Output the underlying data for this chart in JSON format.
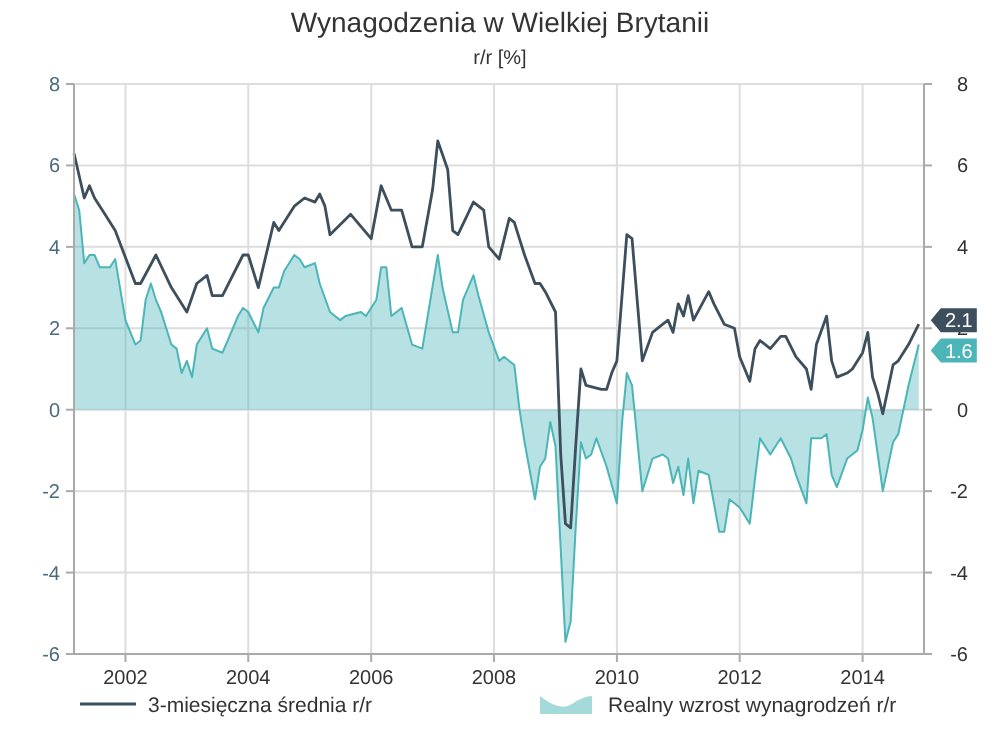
{
  "chart_data": {
    "type": "line",
    "title": "Wynagodzenia w Wielkiej Brytanii",
    "subtitle": "r/r [%]",
    "xlim": [
      "2001-03",
      "2015-01"
    ],
    "xticks": [
      "2002",
      "2004",
      "2006",
      "2008",
      "2010",
      "2012",
      "2014"
    ],
    "ylim": [
      -6,
      8
    ],
    "yticks": [
      -6,
      -4,
      -2,
      0,
      2,
      4,
      6,
      8
    ],
    "y2lim": [
      -6,
      8
    ],
    "y2ticks": [
      -6,
      -4,
      -2,
      0,
      2,
      4,
      6,
      8
    ],
    "grid": true,
    "legend": "bottom",
    "line_style": "solid",
    "marker": "none",
    "annotations": [
      {
        "text": "2.1",
        "x": "2014-12",
        "y": 2.1
      },
      {
        "text": "1.6",
        "x": "2014-12",
        "y": 1.6
      }
    ],
    "series": [
      {
        "name": "3-miesięczna średnia r/r",
        "color": "#3d4f5c",
        "x": [
          "2001-03",
          "2001-05",
          "2001-06",
          "2001-07",
          "2001-09",
          "2001-11",
          "2002-03",
          "2002-04",
          "2002-07",
          "2002-10",
          "2003-01",
          "2003-03",
          "2003-05",
          "2003-06",
          "2003-08",
          "2003-12",
          "2004-01",
          "2004-03",
          "2004-06",
          "2004-07",
          "2004-10",
          "2004-12",
          "2005-02",
          "2005-03",
          "2005-04",
          "2005-05",
          "2005-09",
          "2006-01",
          "2006-03",
          "2006-05",
          "2006-07",
          "2006-09",
          "2006-11",
          "2007-01",
          "2007-02",
          "2007-04",
          "2007-05",
          "2007-06",
          "2007-09",
          "2007-11",
          "2007-12",
          "2008-02",
          "2008-04",
          "2008-05",
          "2008-07",
          "2008-09",
          "2008-10",
          "2008-11",
          "2009-01",
          "2009-02",
          "2009-03",
          "2009-04",
          "2009-05",
          "2009-06",
          "2009-07",
          "2009-10",
          "2009-11",
          "2009-12",
          "2010-01",
          "2010-03",
          "2010-04",
          "2010-06",
          "2010-08",
          "2010-10",
          "2010-11",
          "2010-12",
          "2011-01",
          "2011-02",
          "2011-03",
          "2011-04",
          "2011-07",
          "2011-08",
          "2011-10",
          "2011-12",
          "2012-01",
          "2012-03",
          "2012-04",
          "2012-05",
          "2012-07",
          "2012-09",
          "2012-10",
          "2012-12",
          "2013-02",
          "2013-03",
          "2013-04",
          "2013-06",
          "2013-07",
          "2013-08",
          "2013-10",
          "2013-11",
          "2014-01",
          "2014-02",
          "2014-03",
          "2014-04",
          "2014-05",
          "2014-07",
          "2014-08",
          "2014-10",
          "2014-12"
        ],
        "values": [
          6.3,
          5.2,
          5.5,
          5.2,
          4.8,
          4.4,
          3.1,
          3.1,
          3.8,
          3.0,
          2.4,
          3.1,
          3.3,
          2.8,
          2.8,
          3.8,
          3.8,
          3.0,
          4.6,
          4.4,
          5.0,
          5.2,
          5.1,
          5.3,
          5.0,
          4.3,
          4.8,
          4.2,
          5.5,
          4.9,
          4.9,
          4.0,
          4.0,
          5.4,
          6.6,
          5.9,
          4.4,
          4.3,
          5.1,
          4.9,
          4.0,
          3.7,
          4.7,
          4.6,
          3.8,
          3.1,
          3.1,
          2.9,
          2.4,
          -1.1,
          -2.8,
          -2.9,
          -0.9,
          1.0,
          0.6,
          0.5,
          0.5,
          0.9,
          1.2,
          4.3,
          4.2,
          1.2,
          1.9,
          2.1,
          2.2,
          1.9,
          2.6,
          2.3,
          2.8,
          2.2,
          2.9,
          2.6,
          2.1,
          2.0,
          1.3,
          0.7,
          1.5,
          1.7,
          1.5,
          1.8,
          1.8,
          1.3,
          1.0,
          0.5,
          1.6,
          2.3,
          1.2,
          0.8,
          0.9,
          1.0,
          1.4,
          1.9,
          0.8,
          0.4,
          -0.1,
          1.1,
          1.2,
          1.6,
          2.1
        ]
      },
      {
        "name": "Realny wzrost wynagrodzeń r/r",
        "type": "area",
        "color": "#4bb5b8",
        "x": [
          "2001-03",
          "2001-04",
          "2001-05",
          "2001-06",
          "2001-07",
          "2001-08",
          "2001-10",
          "2001-11",
          "2002-01",
          "2002-03",
          "2002-04",
          "2002-05",
          "2002-06",
          "2002-07",
          "2002-08",
          "2002-10",
          "2002-11",
          "2002-12",
          "2003-01",
          "2003-02",
          "2003-03",
          "2003-05",
          "2003-06",
          "2003-08",
          "2003-09",
          "2003-11",
          "2003-12",
          "2004-01",
          "2004-03",
          "2004-04",
          "2004-06",
          "2004-07",
          "2004-08",
          "2004-10",
          "2004-11",
          "2004-12",
          "2005-02",
          "2005-03",
          "2005-05",
          "2005-07",
          "2005-08",
          "2005-11",
          "2005-12",
          "2006-02",
          "2006-03",
          "2006-04",
          "2006-05",
          "2006-07",
          "2006-09",
          "2006-11",
          "2007-02",
          "2007-03",
          "2007-05",
          "2007-06",
          "2007-07",
          "2007-09",
          "2007-10",
          "2007-12",
          "2008-02",
          "2008-03",
          "2008-05",
          "2008-06",
          "2008-07",
          "2008-09",
          "2008-10",
          "2008-11",
          "2008-12",
          "2009-01",
          "2009-03",
          "2009-04",
          "2009-05",
          "2009-06",
          "2009-07",
          "2009-08",
          "2009-09",
          "2009-11",
          "2010-01",
          "2010-02",
          "2010-03",
          "2010-04",
          "2010-06",
          "2010-08",
          "2010-10",
          "2010-11",
          "2010-12",
          "2011-01",
          "2011-02",
          "2011-03",
          "2011-04",
          "2011-05",
          "2011-07",
          "2011-09",
          "2011-10",
          "2011-11",
          "2012-01",
          "2012-03",
          "2012-04",
          "2012-05",
          "2012-07",
          "2012-09",
          "2012-11",
          "2012-12",
          "2013-02",
          "2013-03",
          "2013-05",
          "2013-06",
          "2013-07",
          "2013-08",
          "2013-10",
          "2013-12",
          "2014-01",
          "2014-02",
          "2014-03",
          "2014-04",
          "2014-05",
          "2014-07",
          "2014-08",
          "2014-10",
          "2014-12"
        ],
        "values": [
          5.3,
          4.9,
          3.6,
          3.8,
          3.8,
          3.5,
          3.5,
          3.7,
          2.2,
          1.6,
          1.7,
          2.7,
          3.1,
          2.7,
          2.4,
          1.6,
          1.5,
          0.9,
          1.2,
          0.8,
          1.6,
          2.0,
          1.5,
          1.4,
          1.7,
          2.3,
          2.5,
          2.4,
          1.9,
          2.5,
          3.0,
          3.0,
          3.4,
          3.8,
          3.7,
          3.5,
          3.6,
          3.1,
          2.4,
          2.2,
          2.3,
          2.4,
          2.3,
          2.7,
          3.5,
          3.5,
          2.3,
          2.5,
          1.6,
          1.5,
          3.8,
          3.0,
          1.9,
          1.9,
          2.7,
          3.3,
          2.8,
          1.9,
          1.2,
          1.3,
          1.1,
          0.0,
          -0.8,
          -2.2,
          -1.4,
          -1.2,
          -0.3,
          -0.9,
          -5.7,
          -5.2,
          -2.9,
          -0.8,
          -1.2,
          -1.1,
          -0.7,
          -1.4,
          -2.3,
          -0.3,
          0.9,
          0.6,
          -2.0,
          -1.2,
          -1.1,
          -1.2,
          -1.8,
          -1.4,
          -2.1,
          -1.2,
          -2.3,
          -1.5,
          -1.6,
          -3.0,
          -3.0,
          -2.2,
          -2.4,
          -2.8,
          -1.7,
          -0.7,
          -1.1,
          -0.7,
          -1.2,
          -1.6,
          -2.3,
          -0.7,
          -0.7,
          -0.6,
          -1.6,
          -1.9,
          -1.2,
          -1.0,
          -0.5,
          0.3,
          -0.2,
          -1.1,
          -2.0,
          -0.8,
          -0.6,
          0.6,
          1.6
        ]
      }
    ]
  }
}
